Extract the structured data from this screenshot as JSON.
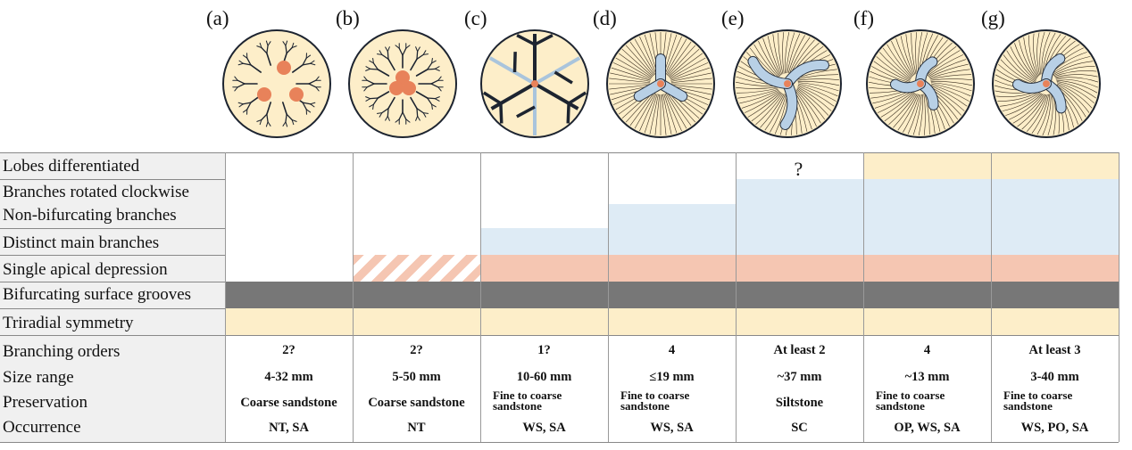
{
  "panels": [
    "(a)",
    "(b)",
    "(c)",
    "(d)",
    "(e)",
    "(f)",
    "(g)"
  ],
  "colors": {
    "yellow": "#fdeec9",
    "blue": "#deebf5",
    "salmon": "#f5c6b2",
    "grey": "#777777",
    "labelbg": "#f0f0f0",
    "depression": "#e8825a",
    "lobe": "#b8d0e6"
  },
  "features": {
    "lobes": "Lobes differentiated",
    "rotated": "Branches rotated clockwise",
    "nonbif": "Non-bifurcating branches",
    "distinct": "Distinct main branches",
    "apical": "Single apical depression",
    "grooves": "Bifurcating surface grooves",
    "triradial": "Triradial symmetry"
  },
  "uncertain_mark": "?",
  "attributes": {
    "branching": "Branching orders",
    "size": "Size range",
    "preservation": "Preservation",
    "occurrence": "Occurrence"
  },
  "taxa": [
    {
      "panel": "(a)",
      "branching": "2?",
      "size": "4-32 mm",
      "preservation": "Coarse sandstone",
      "occurrence": "NT, SA"
    },
    {
      "panel": "(b)",
      "branching": "2?",
      "size": "5-50 mm",
      "preservation": "Coarse sandstone",
      "occurrence": "NT"
    },
    {
      "panel": "(c)",
      "branching": "1?",
      "size": "10-60 mm",
      "preservation": "Fine to coarse sandstone",
      "occurrence": "WS, SA"
    },
    {
      "panel": "(d)",
      "branching": "4",
      "size": "≤19 mm",
      "preservation": "Fine to coarse sandstone",
      "occurrence": "WS, SA"
    },
    {
      "panel": "(e)",
      "branching": "At least 2",
      "size": "~37 mm",
      "preservation": "Siltstone",
      "occurrence": "SC"
    },
    {
      "panel": "(f)",
      "branching": "4",
      "size": "~13 mm",
      "preservation": "Fine to coarse sandstone",
      "occurrence": "OP, WS, SA"
    },
    {
      "panel": "(g)",
      "branching": "At least 3",
      "size": "3-40 mm",
      "preservation": "Fine to coarse sandstone",
      "occurrence": "WS, PO, SA"
    }
  ],
  "presence": {
    "triradial": [
      1,
      1,
      1,
      1,
      1,
      1,
      1
    ],
    "grooves": [
      1,
      1,
      1,
      1,
      1,
      1,
      1
    ],
    "apical": [
      0,
      "partial",
      1,
      1,
      1,
      1,
      1
    ],
    "distinct": [
      0,
      0,
      1,
      1,
      1,
      1,
      1
    ],
    "nonbif": [
      0,
      0,
      0,
      1,
      1,
      1,
      1
    ],
    "rotated": [
      0,
      0,
      0,
      0,
      1,
      1,
      1
    ],
    "lobes": [
      0,
      0,
      0,
      0,
      "uncertain",
      1,
      1
    ]
  }
}
